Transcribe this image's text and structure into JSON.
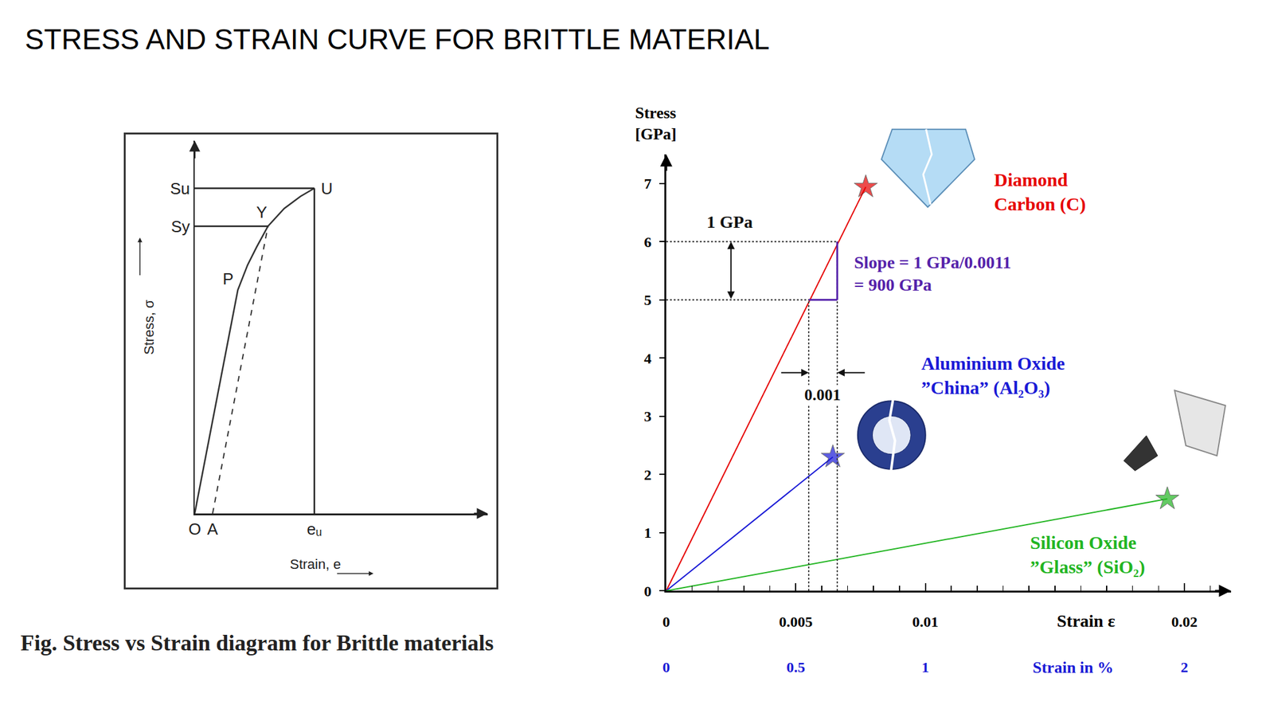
{
  "title": "STRESS AND STRAIN CURVE FOR BRITTLE MATERIAL",
  "chart_data": [
    {
      "type": "line",
      "caption": "Fig. Stress vs Strain diagram for Brittle materials",
      "x_label": "Strain, e",
      "y_label": "Stress, σ",
      "xlim": [
        0,
        3.6
      ],
      "ylim": [
        0,
        4.62
      ],
      "xticks": [
        {
          "value": 0,
          "label": "O"
        },
        {
          "value": 0.22,
          "label": "A"
        },
        {
          "value": 1.47,
          "label": "eᵤ"
        }
      ],
      "yticks": [
        {
          "value": 3.56,
          "label": "Sy"
        },
        {
          "value": 4.03,
          "label": "Su"
        }
      ],
      "grid": false,
      "series": [
        {
          "x": [
            0,
            0.53,
            0.65,
            0.76,
            0.9,
            1.1,
            1.3,
            1.47
          ],
          "values": [
            0,
            2.77,
            3.08,
            3.3,
            3.56,
            3.78,
            3.93,
            4.03
          ],
          "color": "#333333",
          "line_style": "solid"
        },
        {
          "x": [
            0.22,
            0.9
          ],
          "values": [
            0,
            3.56
          ],
          "color": "#333333",
          "line_style": "dashed"
        },
        {
          "x": [
            0,
            1.47
          ],
          "values": [
            4.03,
            4.03
          ],
          "color": "#222222",
          "line_style": "solid"
        },
        {
          "x": [
            0,
            0.9
          ],
          "values": [
            3.56,
            3.56
          ],
          "color": "#222222",
          "line_style": "solid"
        },
        {
          "x": [
            1.47,
            1.47
          ],
          "values": [
            0,
            4.03
          ],
          "color": "#222222",
          "line_style": "solid"
        }
      ],
      "points": [
        {
          "label": "P",
          "x": 0.53,
          "y": 2.77
        },
        {
          "label": "Y",
          "x": 0.9,
          "y": 3.56
        },
        {
          "label": "U",
          "x": 1.47,
          "y": 4.03
        }
      ]
    },
    {
      "type": "line",
      "y_label": "Stress\n[GPa]",
      "x_label": "Strain ε",
      "x2_label": "Strain in %",
      "xlim": [
        0,
        0.0218
      ],
      "ylim": [
        0,
        7.5
      ],
      "x2lim": [
        0,
        2.18
      ],
      "xticks": [
        0,
        0.005,
        0.01,
        0.02
      ],
      "yticks": [
        0,
        1,
        2,
        3,
        4,
        5,
        6,
        7
      ],
      "x2ticks": [
        0,
        0.5,
        1,
        2
      ],
      "grid": false,
      "series": [
        {
          "name": "Diamond\nCarbon (C)",
          "color": "#e60000",
          "marker": "star",
          "x": [
            0,
            0.0077
          ],
          "values": [
            0,
            6.94
          ]
        },
        {
          "name": "Aluminium Oxide\n”China” (Al₂O₃)",
          "color": "#1a1ad6",
          "marker": "star",
          "x": [
            0,
            0.00643
          ],
          "values": [
            0,
            2.3
          ]
        },
        {
          "name": "Silicon Oxide\n”Glass” (SiO₂)",
          "color": "#22b522",
          "marker": "star",
          "x": [
            0,
            0.01934
          ],
          "values": [
            0,
            1.58
          ]
        }
      ],
      "slope_triangle": {
        "x": [
          0.0055,
          0.0066
        ],
        "y": [
          5,
          6
        ]
      },
      "annotations": [
        "1 GPa",
        "Slope = 1 GPa/0.0011\n= 900 GPa",
        "0.001"
      ]
    }
  ]
}
